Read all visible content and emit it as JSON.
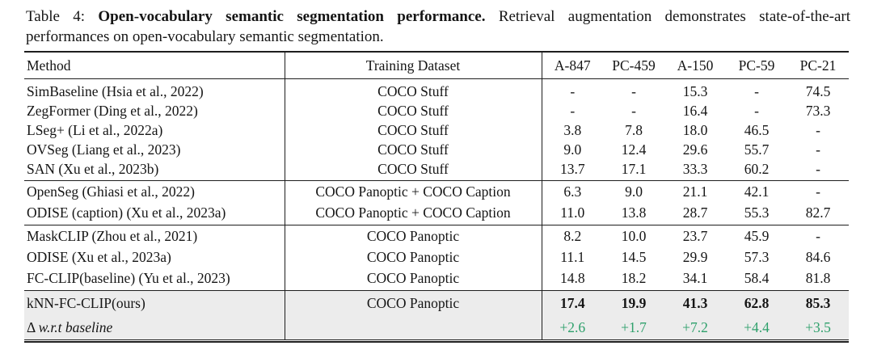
{
  "caption": {
    "prefix": "Table 4:",
    "bold": "Open-vocabulary semantic segmentation performance.",
    "rest": "Retrieval augmentation demonstrates state-of-the-art performances on open-vocabulary semantic segmentation."
  },
  "colors": {
    "delta_green": "#2EA06B",
    "highlight_bg": "#ECECEC",
    "rule_color": "#1E1E1E"
  },
  "table": {
    "columns": {
      "method": "Method",
      "dataset": "Training Dataset",
      "benchmarks": [
        "A-847",
        "PC-459",
        "A-150",
        "PC-59",
        "PC-21"
      ]
    },
    "groups": [
      {
        "rows": [
          {
            "method": "SimBaseline (Hsia et al., 2022)",
            "dataset": "COCO Stuff",
            "values": [
              "-",
              "-",
              "15.3",
              "-",
              "74.5"
            ]
          },
          {
            "method": "ZegFormer (Ding et al., 2022)",
            "dataset": "COCO Stuff",
            "values": [
              "-",
              "-",
              "16.4",
              "-",
              "73.3"
            ]
          },
          {
            "method": "LSeg+ (Li et al., 2022a)",
            "dataset": "COCO Stuff",
            "values": [
              "3.8",
              "7.8",
              "18.0",
              "46.5",
              "-"
            ]
          },
          {
            "method": "OVSeg (Liang et al., 2023)",
            "dataset": "COCO Stuff",
            "values": [
              "9.0",
              "12.4",
              "29.6",
              "55.7",
              "-"
            ]
          },
          {
            "method": "SAN (Xu et al., 2023b)",
            "dataset": "COCO Stuff",
            "values": [
              "13.7",
              "17.1",
              "33.3",
              "60.2",
              "-"
            ]
          }
        ]
      },
      {
        "rows": [
          {
            "method": "OpenSeg (Ghiasi et al., 2022)",
            "dataset": "COCO Panoptic + COCO Caption",
            "values": [
              "6.3",
              "9.0",
              "21.1",
              "42.1",
              "-"
            ]
          },
          {
            "method": "ODISE (caption) (Xu et al., 2023a)",
            "dataset": "COCO Panoptic + COCO Caption",
            "values": [
              "11.0",
              "13.8",
              "28.7",
              "55.3",
              "82.7"
            ]
          }
        ]
      },
      {
        "rows": [
          {
            "method": "MaskCLIP (Zhou et al., 2021)",
            "dataset": "COCO Panoptic",
            "values": [
              "8.2",
              "10.0",
              "23.7",
              "45.9",
              "-"
            ]
          },
          {
            "method": "ODISE (Xu et al., 2023a)",
            "dataset": "COCO Panoptic",
            "values": [
              "11.1",
              "14.5",
              "29.9",
              "57.3",
              "84.6"
            ]
          },
          {
            "method": "FC-CLIP(baseline) (Yu et al., 2023)",
            "dataset": "COCO Panoptic",
            "values": [
              "14.8",
              "18.2",
              "34.1",
              "58.4",
              "81.8"
            ]
          }
        ]
      }
    ],
    "highlight": {
      "ours": {
        "method": "kNN-FC-CLIP(ours)",
        "dataset": "COCO Panoptic",
        "values": [
          "17.4",
          "19.9",
          "41.3",
          "62.8",
          "85.3"
        ]
      },
      "delta": {
        "method_prefix": "Δ",
        "method": "w.r.t baseline",
        "dataset": "",
        "values": [
          "+2.6",
          "+1.7",
          "+7.2",
          "+4.4",
          "+3.5"
        ]
      }
    }
  }
}
